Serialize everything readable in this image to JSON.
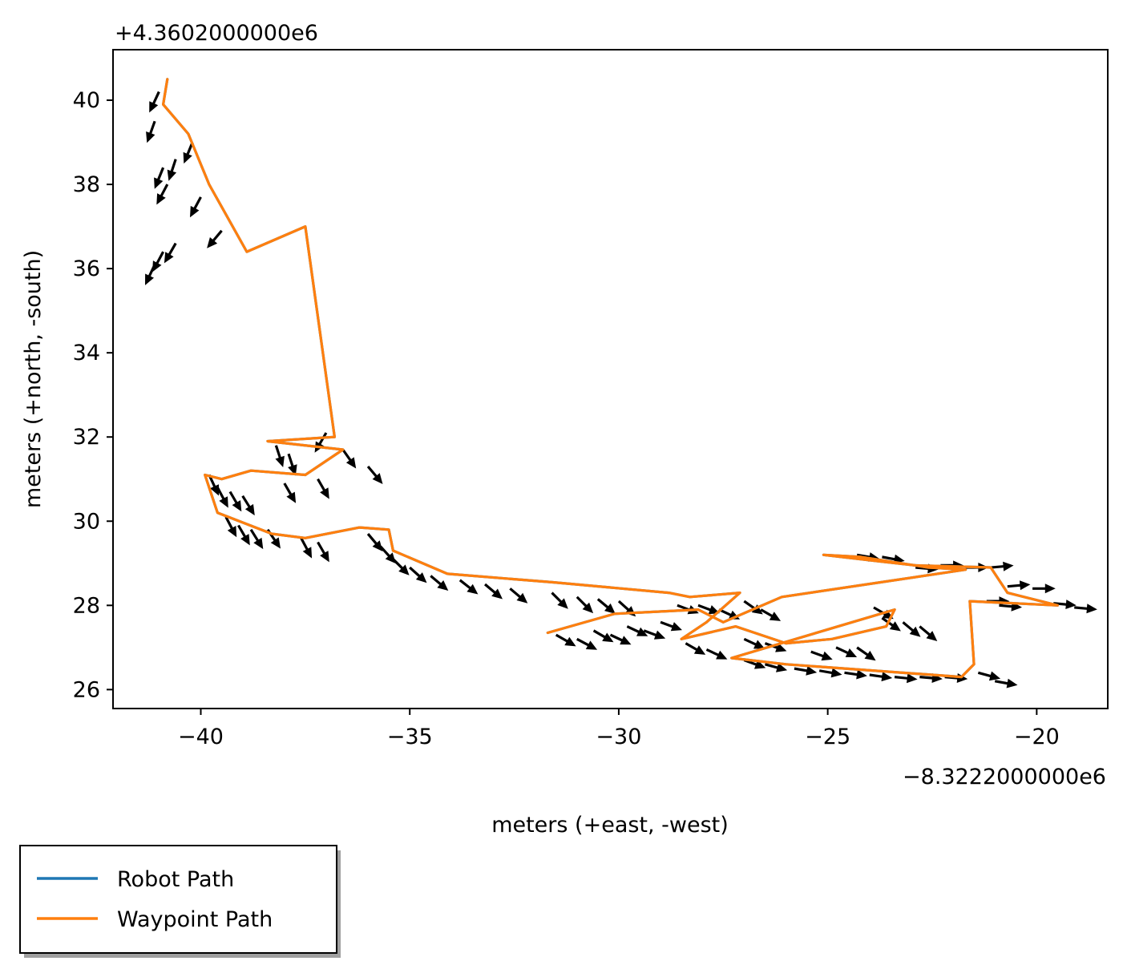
{
  "chart_data": {
    "type": "line",
    "title": "",
    "xlabel": "meters (+east, -west)",
    "ylabel": "meters (+north, -south)",
    "x_offset_label": "−8.3222000000e6",
    "y_offset_label": "+4.3602000000e6",
    "xlim": [
      -42.1,
      -18.3
    ],
    "ylim": [
      25.55,
      41.2
    ],
    "x_ticks": [
      -40,
      -35,
      -30,
      -25,
      -20
    ],
    "y_ticks": [
      26,
      28,
      30,
      32,
      34,
      36,
      38,
      40
    ],
    "x_tick_labels": [
      "−40",
      "−35",
      "−30",
      "−25",
      "−20"
    ],
    "y_tick_labels": [
      "26",
      "28",
      "30",
      "32",
      "34",
      "36",
      "38",
      "40"
    ],
    "grid": false,
    "legend": {
      "placement": "bottom-left outside",
      "entries": [
        "Robot Path",
        "Waypoint Path"
      ]
    },
    "colors": {
      "robot_path": "#1f77b4",
      "waypoint_path": "#ff7f0e",
      "arrows": "#000000"
    },
    "series": [
      {
        "name": "Robot Path",
        "x": [
          -40.8,
          -40.9,
          -40.3,
          -39.8,
          -38.9,
          -37.5,
          -36.8,
          -38.4,
          -36.6,
          -37.5,
          -38.8,
          -39.5,
          -39.9,
          -39.6,
          -38.3,
          -37.5,
          -36.2,
          -35.5,
          -35.4,
          -34.1,
          -31.6,
          -28.8,
          -28.3,
          -27.1,
          -27.9,
          -28.5,
          -27.2,
          -26.0,
          -24.9,
          -23.6,
          -23.4,
          -27.3,
          -26.0,
          -21.8,
          -21.5,
          -21.6,
          -19.5,
          -20.7,
          -21.1,
          -22.9,
          -23.8,
          -25.1,
          -24.2,
          -22.6,
          -21.7,
          -26.1,
          -27.5,
          -28.1,
          -30.1,
          -31.7
        ],
        "y": [
          40.5,
          39.9,
          39.2,
          38.0,
          36.4,
          37.0,
          32.0,
          31.9,
          31.7,
          31.1,
          31.2,
          31.0,
          31.1,
          30.2,
          29.7,
          29.6,
          29.85,
          29.8,
          29.3,
          28.75,
          28.55,
          28.3,
          28.2,
          28.3,
          27.6,
          27.2,
          27.5,
          27.1,
          27.2,
          27.5,
          27.9,
          26.75,
          26.6,
          26.3,
          26.6,
          28.1,
          28.0,
          28.3,
          28.9,
          28.95,
          29.05,
          29.2,
          29.15,
          28.9,
          28.85,
          28.2,
          27.6,
          27.9,
          27.8,
          27.35
        ]
      },
      {
        "name": "Waypoint Path",
        "x": [
          -40.8,
          -40.9,
          -40.3,
          -39.8,
          -38.9,
          -37.5,
          -36.8,
          -38.4,
          -36.6,
          -37.5,
          -38.8,
          -39.5,
          -39.9,
          -39.6,
          -38.3,
          -37.5,
          -36.2,
          -35.5,
          -35.4,
          -34.1,
          -31.6,
          -28.8,
          -28.3,
          -27.1,
          -27.9,
          -28.5,
          -27.2,
          -26.0,
          -24.9,
          -23.6,
          -23.4,
          -27.3,
          -26.0,
          -21.8,
          -21.5,
          -21.6,
          -19.5,
          -20.7,
          -21.1,
          -22.9,
          -23.8,
          -25.1,
          -24.2,
          -22.6,
          -21.7,
          -26.1,
          -27.5,
          -28.1,
          -30.1,
          -31.7
        ],
        "y": [
          40.5,
          39.9,
          39.2,
          38.0,
          36.4,
          37.0,
          32.0,
          31.9,
          31.7,
          31.1,
          31.2,
          31.0,
          31.1,
          30.2,
          29.7,
          29.6,
          29.85,
          29.8,
          29.3,
          28.75,
          28.55,
          28.3,
          28.2,
          28.3,
          27.6,
          27.2,
          27.5,
          27.1,
          27.2,
          27.5,
          27.9,
          26.75,
          26.6,
          26.3,
          26.6,
          28.1,
          28.0,
          28.3,
          28.9,
          28.95,
          29.05,
          29.2,
          29.15,
          28.9,
          28.85,
          28.2,
          27.6,
          27.9,
          27.8,
          27.35
        ]
      }
    ],
    "arrow_length": 0.55,
    "arrows": [
      {
        "x": -41.0,
        "y": 40.2,
        "angle": -115
      },
      {
        "x": -41.1,
        "y": 39.5,
        "angle": -110
      },
      {
        "x": -40.9,
        "y": 38.4,
        "angle": -112
      },
      {
        "x": -40.8,
        "y": 38.0,
        "angle": -118
      },
      {
        "x": -40.6,
        "y": 38.6,
        "angle": -108
      },
      {
        "x": -40.2,
        "y": 39.0,
        "angle": -112
      },
      {
        "x": -40.0,
        "y": 37.7,
        "angle": -118
      },
      {
        "x": -39.5,
        "y": 36.9,
        "angle": -130
      },
      {
        "x": -40.9,
        "y": 36.4,
        "angle": -118
      },
      {
        "x": -41.1,
        "y": 36.1,
        "angle": -115
      },
      {
        "x": -40.6,
        "y": 36.6,
        "angle": -120
      },
      {
        "x": -37.0,
        "y": 32.1,
        "angle": -120
      },
      {
        "x": -38.2,
        "y": 31.8,
        "angle": -72
      },
      {
        "x": -37.9,
        "y": 31.6,
        "angle": -72
      },
      {
        "x": -36.6,
        "y": 31.7,
        "angle": -55
      },
      {
        "x": -36.0,
        "y": 31.3,
        "angle": -50
      },
      {
        "x": -37.2,
        "y": 31.0,
        "angle": -60
      },
      {
        "x": -38.0,
        "y": 30.9,
        "angle": -60
      },
      {
        "x": -39.8,
        "y": 31.1,
        "angle": -65
      },
      {
        "x": -39.6,
        "y": 30.8,
        "angle": -62
      },
      {
        "x": -39.3,
        "y": 30.7,
        "angle": -60
      },
      {
        "x": -39.0,
        "y": 30.6,
        "angle": -58
      },
      {
        "x": -39.4,
        "y": 30.1,
        "angle": -62
      },
      {
        "x": -39.1,
        "y": 29.9,
        "angle": -60
      },
      {
        "x": -38.8,
        "y": 29.8,
        "angle": -58
      },
      {
        "x": -38.4,
        "y": 29.8,
        "angle": -56
      },
      {
        "x": -37.6,
        "y": 29.6,
        "angle": -62
      },
      {
        "x": -37.2,
        "y": 29.5,
        "angle": -60
      },
      {
        "x": -36.0,
        "y": 29.7,
        "angle": -50
      },
      {
        "x": -35.7,
        "y": 29.4,
        "angle": -48
      },
      {
        "x": -35.4,
        "y": 29.1,
        "angle": -45
      },
      {
        "x": -35.0,
        "y": 28.9,
        "angle": -42
      },
      {
        "x": -34.5,
        "y": 28.7,
        "angle": -40
      },
      {
        "x": -33.8,
        "y": 28.6,
        "angle": -38
      },
      {
        "x": -33.2,
        "y": 28.5,
        "angle": -40
      },
      {
        "x": -32.6,
        "y": 28.4,
        "angle": -40
      },
      {
        "x": -31.6,
        "y": 28.3,
        "angle": -45
      },
      {
        "x": -31.0,
        "y": 28.2,
        "angle": -45
      },
      {
        "x": -30.5,
        "y": 28.15,
        "angle": -40
      },
      {
        "x": -30.0,
        "y": 28.1,
        "angle": -42
      },
      {
        "x": -31.5,
        "y": 27.3,
        "angle": -30
      },
      {
        "x": -31.0,
        "y": 27.2,
        "angle": -28
      },
      {
        "x": -30.6,
        "y": 27.4,
        "angle": -30
      },
      {
        "x": -30.2,
        "y": 27.3,
        "angle": -25
      },
      {
        "x": -29.8,
        "y": 27.5,
        "angle": -25
      },
      {
        "x": -29.4,
        "y": 27.4,
        "angle": -20
      },
      {
        "x": -29.0,
        "y": 27.6,
        "angle": -20
      },
      {
        "x": -28.6,
        "y": 28.0,
        "angle": -20
      },
      {
        "x": -28.1,
        "y": 28.0,
        "angle": -20
      },
      {
        "x": -27.6,
        "y": 27.9,
        "angle": -25
      },
      {
        "x": -27.0,
        "y": 28.1,
        "angle": -35
      },
      {
        "x": -26.6,
        "y": 27.9,
        "angle": -30
      },
      {
        "x": -28.4,
        "y": 27.1,
        "angle": -30
      },
      {
        "x": -27.9,
        "y": 26.95,
        "angle": -25
      },
      {
        "x": -27.0,
        "y": 27.2,
        "angle": -25
      },
      {
        "x": -26.5,
        "y": 27.1,
        "angle": -20
      },
      {
        "x": -27.0,
        "y": 26.7,
        "angle": -20
      },
      {
        "x": -26.5,
        "y": 26.6,
        "angle": -15
      },
      {
        "x": -25.8,
        "y": 26.5,
        "angle": -10
      },
      {
        "x": -25.2,
        "y": 26.45,
        "angle": -10
      },
      {
        "x": -24.6,
        "y": 26.4,
        "angle": -8
      },
      {
        "x": -24.0,
        "y": 26.35,
        "angle": -8
      },
      {
        "x": -23.4,
        "y": 26.3,
        "angle": -6
      },
      {
        "x": -22.8,
        "y": 26.3,
        "angle": -5
      },
      {
        "x": -22.2,
        "y": 26.3,
        "angle": -5
      },
      {
        "x": -21.4,
        "y": 26.4,
        "angle": -15
      },
      {
        "x": -21.0,
        "y": 26.2,
        "angle": -10
      },
      {
        "x": -25.4,
        "y": 26.9,
        "angle": -20
      },
      {
        "x": -24.8,
        "y": 27.0,
        "angle": -25
      },
      {
        "x": -24.3,
        "y": 27.0,
        "angle": -35
      },
      {
        "x": -23.7,
        "y": 27.7,
        "angle": -35
      },
      {
        "x": -23.2,
        "y": 27.6,
        "angle": -40
      },
      {
        "x": -23.9,
        "y": 27.95,
        "angle": -30
      },
      {
        "x": -22.8,
        "y": 27.5,
        "angle": -40
      },
      {
        "x": -24.3,
        "y": 29.2,
        "angle": -10
      },
      {
        "x": -23.7,
        "y": 29.15,
        "angle": -10
      },
      {
        "x": -22.9,
        "y": 28.9,
        "angle": -5
      },
      {
        "x": -22.3,
        "y": 28.95,
        "angle": 0
      },
      {
        "x": -21.7,
        "y": 28.9,
        "angle": 0
      },
      {
        "x": -21.1,
        "y": 28.9,
        "angle": 5
      },
      {
        "x": -20.7,
        "y": 28.45,
        "angle": 5
      },
      {
        "x": -20.1,
        "y": 28.4,
        "angle": 0
      },
      {
        "x": -21.2,
        "y": 28.1,
        "angle": 0
      },
      {
        "x": -20.9,
        "y": 28.0,
        "angle": -5
      },
      {
        "x": -19.6,
        "y": 28.05,
        "angle": -5
      },
      {
        "x": -19.1,
        "y": 27.95,
        "angle": -5
      }
    ]
  }
}
